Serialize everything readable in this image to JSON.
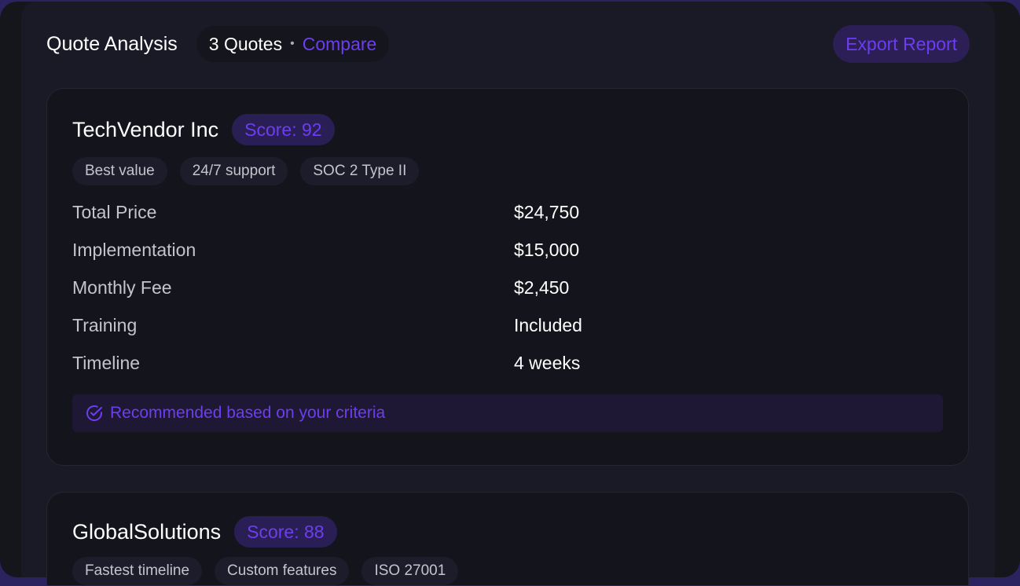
{
  "header": {
    "title": "Quote Analysis",
    "quote_count": "3 Quotes",
    "separator": "•",
    "compare_label": "Compare",
    "export_label": "Export Report"
  },
  "colors": {
    "accent": "#6d3df0",
    "background": "#15151c",
    "card": "#14141c"
  },
  "quotes": [
    {
      "vendor": "TechVendor Inc",
      "score": "Score: 92",
      "tags": [
        "Best value",
        "24/7 support",
        "SOC 2 Type II"
      ],
      "rows": [
        {
          "label": "Total Price",
          "value": "$24,750"
        },
        {
          "label": "Implementation",
          "value": "$15,000"
        },
        {
          "label": "Monthly Fee",
          "value": "$2,450"
        },
        {
          "label": "Training",
          "value": "Included"
        },
        {
          "label": "Timeline",
          "value": "4 weeks"
        }
      ],
      "recommendation": "Recommended based on your criteria",
      "icon": "check-circle-icon"
    },
    {
      "vendor": "GlobalSolutions",
      "score": "Score: 88",
      "tags": [
        "Fastest timeline",
        "Custom features",
        "ISO 27001"
      ]
    }
  ]
}
